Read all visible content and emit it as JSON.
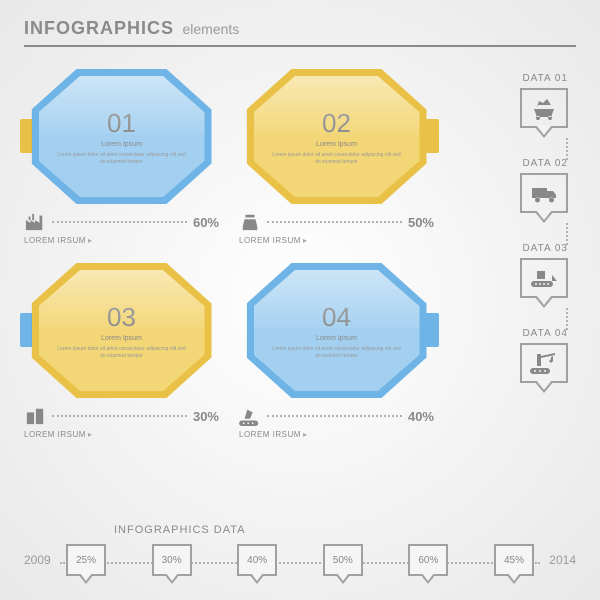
{
  "header": {
    "title_main": "INFOGRAPHICS",
    "title_sub": "elements"
  },
  "colors": {
    "blue_outer": "#6fb4e6",
    "blue_inner": "#a3d0f0",
    "yellow_outer": "#e9c146",
    "yellow_inner": "#f3d675",
    "text_gray": "#888888",
    "border_gray": "#a0a0a0"
  },
  "panels": [
    {
      "num": "01",
      "outer": "#6fb4e6",
      "inner": "#a3d0f0",
      "tab_side": "left",
      "tab_color": "#e9c146",
      "pct": "60%",
      "icon": "factory",
      "label": "LOREM IRSUM",
      "lorem": "Lorem Ipsum",
      "body": "Lorem ipsum dolor sit amet consectetur adipiscing elit sed do eiusmod tempor"
    },
    {
      "num": "02",
      "outer": "#e9c146",
      "inner": "#f3d675",
      "tab_side": "right",
      "tab_color": "#e9c146",
      "pct": "50%",
      "icon": "register",
      "label": "LOREM IRSUM",
      "lorem": "Lorem Ipsum",
      "body": "Lorem ipsum dolor sit amet consectetur adipiscing elit sed do eiusmod tempor"
    },
    {
      "num": "03",
      "outer": "#e9c146",
      "inner": "#f3d675",
      "tab_side": "left",
      "tab_color": "#6fb4e6",
      "pct": "30%",
      "icon": "building",
      "label": "LOREM IRSUM",
      "lorem": "Lorem Ipsum",
      "body": "Lorem ipsum dolor sit amet consectetur adipiscing elit sed do eiusmod tempor"
    },
    {
      "num": "04",
      "outer": "#6fb4e6",
      "inner": "#a3d0f0",
      "tab_side": "right",
      "tab_color": "#6fb4e6",
      "pct": "40%",
      "icon": "conveyor",
      "label": "LOREM IRSUM",
      "lorem": "Lorem Ipsum",
      "body": "Lorem ipsum dolor sit amet consectetur adipiscing elit sed do eiusmod tempor"
    }
  ],
  "sidebar": [
    {
      "label": "DATA 01",
      "icon": "minecart"
    },
    {
      "label": "DATA 02",
      "icon": "truck"
    },
    {
      "label": "DATA 03",
      "icon": "bulldozer"
    },
    {
      "label": "DATA 04",
      "icon": "crane"
    }
  ],
  "footer": {
    "title": "INFOGRAPHICS DATA",
    "year_start": "2009",
    "year_end": "2014",
    "values": [
      "25%",
      "30%",
      "40%",
      "50%",
      "60%",
      "45%"
    ]
  }
}
